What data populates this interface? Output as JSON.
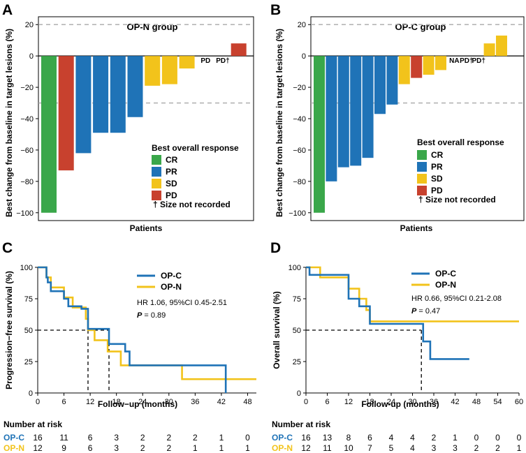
{
  "colors": {
    "CR": "#3aa74a",
    "PR": "#1f73b7",
    "SD": "#f2c31b",
    "PD": "#c8412e",
    "opc": "#1f73b7",
    "opn": "#f2c31b"
  },
  "panel_letters": [
    "A",
    "B",
    "C",
    "D"
  ],
  "chart_data": [
    {
      "type": "bar",
      "panel": "A",
      "title": "OP-N group",
      "ylabel": "Best change from baseline in target lesions (%)",
      "xlabel": "Patients",
      "ylim": [
        -105,
        25
      ],
      "yticks": [
        20,
        0,
        -20,
        -40,
        -60,
        -80,
        -100
      ],
      "yticklabels": [
        "20",
        "0",
        "−20",
        "−40",
        "−60",
        "−80",
        "−100"
      ],
      "reference_lines": [
        20,
        -30
      ],
      "values": [
        -100,
        -73,
        -62,
        -49,
        -49,
        -39,
        -19,
        -18,
        -8,
        null,
        null,
        8
      ],
      "responses": [
        "CR",
        "PD",
        "PR",
        "PR",
        "PR",
        "PR",
        "SD",
        "SD",
        "SD",
        "PD",
        "PD",
        "PD"
      ],
      "labels_text": [
        null,
        null,
        null,
        null,
        null,
        null,
        null,
        null,
        null,
        "PD",
        "PD†",
        null
      ],
      "legend": {
        "title": "Best overall response",
        "items": [
          "CR",
          "PR",
          "SD",
          "PD"
        ],
        "note": "† Size not recorded"
      }
    },
    {
      "type": "bar",
      "panel": "B",
      "title": "OP-C group",
      "ylabel": "Best change from baseline in target lesions (%)",
      "xlabel": "Patients",
      "ylim": [
        -105,
        25
      ],
      "yticks": [
        20,
        0,
        -20,
        -40,
        -60,
        -80,
        -100
      ],
      "yticklabels": [
        "20",
        "0",
        "−20",
        "−40",
        "−60",
        "−80",
        "−100"
      ],
      "reference_lines": [
        20,
        -30
      ],
      "values": [
        -100,
        -80,
        -71,
        -70,
        -65,
        -37,
        -31,
        -18,
        -14,
        -12,
        -9,
        null,
        null,
        null,
        8,
        13
      ],
      "responses": [
        "CR",
        "PR",
        "PR",
        "PR",
        "PR",
        "PR",
        "PR",
        "SD",
        "PD",
        "SD",
        "SD",
        "SD",
        "PD",
        "PD",
        "SD",
        "SD"
      ],
      "labels_text": [
        null,
        null,
        null,
        null,
        null,
        null,
        null,
        null,
        null,
        null,
        null,
        "NA",
        "PD†",
        "PD†",
        null,
        null
      ],
      "legend": {
        "title": "Best overall response",
        "items": [
          "CR",
          "PR",
          "SD",
          "PD"
        ],
        "note": "† Size not recorded"
      }
    },
    {
      "type": "line",
      "panel": "C",
      "ylabel": "Progression−free survival (%)",
      "xlabel": "Follow−up (months)",
      "xlim": [
        0,
        50
      ],
      "ylim": [
        0,
        100
      ],
      "xticks": [
        0,
        6,
        12,
        18,
        24,
        30,
        36,
        42,
        48
      ],
      "yticks": [
        0,
        25,
        50,
        75,
        100
      ],
      "series": [
        {
          "name": "OP-C",
          "color": "#1f73b7",
          "x": [
            0,
            2,
            2.3,
            3,
            4,
            6,
            7,
            9,
            10,
            11.5,
            16,
            16.3,
            20,
            21,
            43
          ],
          "y": [
            100,
            92,
            88,
            81,
            81,
            75,
            69,
            69,
            67,
            51,
            51,
            39,
            33,
            22,
            0
          ]
        },
        {
          "name": "OP-N",
          "color": "#f2c31b",
          "x": [
            0,
            2,
            3,
            4,
            6,
            8,
            11,
            11.5,
            13,
            16,
            19,
            33,
            50
          ],
          "y": [
            100,
            92,
            84,
            84,
            76,
            68,
            59,
            50,
            42,
            33,
            22,
            11,
            11
          ]
        }
      ],
      "medians": [
        11.5,
        16.3
      ],
      "stats": {
        "hr": "HR 1.06, 95%CI 0.45-2.51",
        "p_label": "P",
        "p_value": " = 0.89"
      },
      "risk_table": {
        "title": "Number at risk",
        "rows": [
          {
            "label": "OP-C",
            "values": [
              "16",
              "11",
              "6",
              "3",
              "2",
              "2",
              "2",
              "1",
              "0"
            ]
          },
          {
            "label": "OP-N",
            "values": [
              "12",
              "9",
              "6",
              "3",
              "2",
              "2",
              "1",
              "1",
              "1"
            ]
          }
        ]
      }
    },
    {
      "type": "line",
      "panel": "D",
      "ylabel": "Overall survival (%)",
      "xlabel": "Follow-up (months)",
      "xlim": [
        0,
        60
      ],
      "ylim": [
        0,
        100
      ],
      "xticks": [
        0,
        6,
        12,
        18,
        24,
        30,
        36,
        42,
        48,
        54,
        60
      ],
      "yticks": [
        0,
        25,
        50,
        75,
        100
      ],
      "series": [
        {
          "name": "OP-C",
          "color": "#1f73b7",
          "x": [
            0,
            1,
            11,
            12,
            15,
            18,
            32.5,
            33,
            35,
            46
          ],
          "y": [
            100,
            94,
            94,
            75,
            69,
            55,
            55,
            41,
            27,
            27
          ]
        },
        {
          "name": "OP-N",
          "color": "#f2c31b",
          "x": [
            0,
            4,
            11,
            12,
            15,
            17,
            18,
            60
          ],
          "y": [
            100,
            92,
            92,
            83,
            75,
            66,
            57,
            57
          ]
        }
      ],
      "medians": [
        32.5
      ],
      "stats": {
        "hr": "HR 0.66, 95%CI 0.21-2.08",
        "p_label": "P",
        "p_value": " = 0.47"
      },
      "risk_table": {
        "title": "Number at risk",
        "rows": [
          {
            "label": "OP-C",
            "values": [
              "16",
              "13",
              "8",
              "6",
              "4",
              "4",
              "2",
              "1",
              "0",
              "0",
              "0"
            ]
          },
          {
            "label": "OP-N",
            "values": [
              "12",
              "11",
              "10",
              "7",
              "5",
              "4",
              "3",
              "3",
              "2",
              "2",
              "1"
            ]
          }
        ]
      }
    }
  ]
}
